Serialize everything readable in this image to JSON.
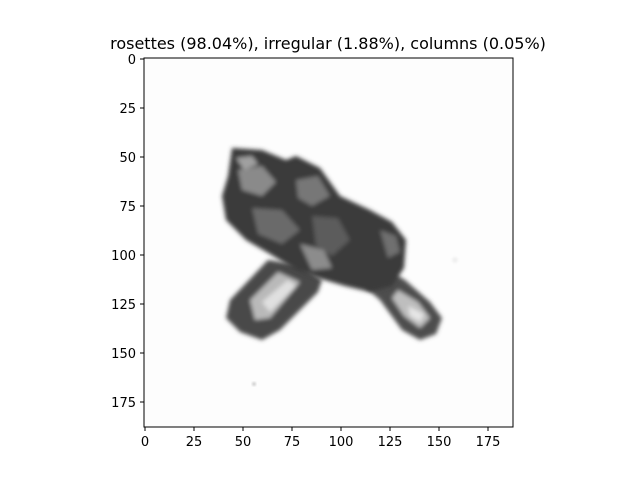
{
  "figure": {
    "title": "rosettes (98.04%), irregular (1.88%), columns (0.05%)",
    "x_ticks": [
      "0",
      "25",
      "50",
      "75",
      "100",
      "125",
      "150",
      "175"
    ],
    "y_ticks": [
      "0",
      "25",
      "50",
      "75",
      "100",
      "125",
      "150",
      "175"
    ],
    "extent": [
      0,
      188
    ],
    "colors": {
      "background": "#fefefe",
      "crystal": "#3a3a3a",
      "axis": "#000000"
    }
  }
}
